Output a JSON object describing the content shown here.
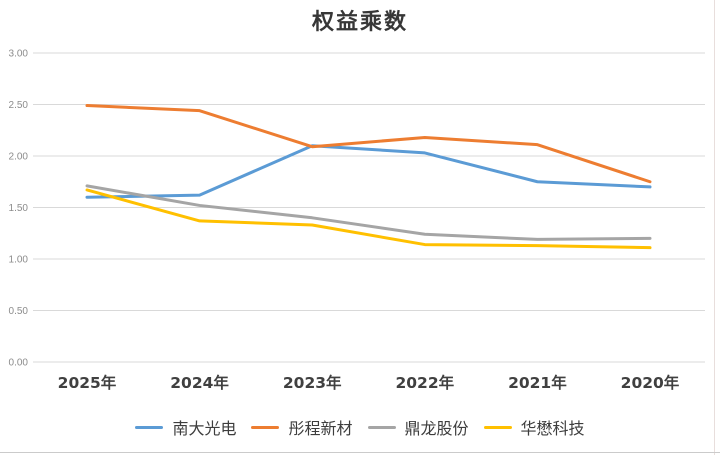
{
  "chart_data": {
    "type": "line",
    "title": "权益乘数",
    "categories": [
      "2025年",
      "2024年",
      "2023年",
      "2022年",
      "2021年",
      "2020年"
    ],
    "series": [
      {
        "name": "南大光电",
        "color": "#5B9BD5",
        "values": [
          1.6,
          1.62,
          2.1,
          2.03,
          1.75,
          1.7
        ]
      },
      {
        "name": "彤程新材",
        "color": "#ED7D31",
        "values": [
          2.49,
          2.44,
          2.09,
          2.18,
          2.11,
          1.75
        ]
      },
      {
        "name": "鼎龙股份",
        "color": "#A5A5A5",
        "values": [
          1.71,
          1.52,
          1.4,
          1.24,
          1.19,
          1.2
        ]
      },
      {
        "name": "华懋科技",
        "color": "#FFC000",
        "values": [
          1.67,
          1.37,
          1.33,
          1.14,
          1.13,
          1.11
        ]
      }
    ],
    "y_axis": {
      "min": 0,
      "max": 3,
      "step": 0.5,
      "tick_labels": [
        "3.00",
        "2.50",
        "2.00",
        "1.50",
        "1.00",
        "0.50",
        "0.00"
      ],
      "tick_color": "#8c8c8c"
    },
    "x_axis": {
      "label_color": "#404040"
    },
    "grid": true,
    "gridline_color": "#d9d9d9",
    "legend_position": "bottom",
    "line_width": 3
  }
}
